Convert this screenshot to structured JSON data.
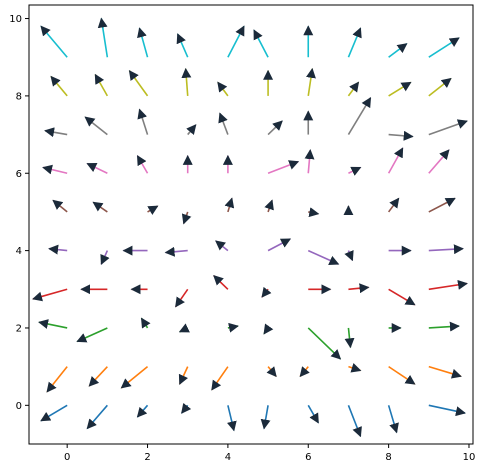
{
  "chart_data": {
    "type": "quiver",
    "title": "",
    "xlabel": "",
    "ylabel": "",
    "xlim": [
      -0.95,
      10.1
    ],
    "ylim": [
      -1.0,
      10.35
    ],
    "xticks": [
      0,
      2,
      4,
      6,
      8,
      10
    ],
    "yticks": [
      0,
      2,
      4,
      6,
      8,
      10
    ],
    "x_ticklabels": [
      "0",
      "2",
      "4",
      "6",
      "8",
      "10"
    ],
    "y_ticklabels": [
      "0",
      "2",
      "4",
      "6",
      "8",
      "10"
    ],
    "grid": false,
    "legend": false,
    "arrow_head_color": "#1b2a3a",
    "row_colors": [
      "#1f77b4",
      "#ff7f0e",
      "#2ca02c",
      "#d62728",
      "#9467bd",
      "#8c564b",
      "#e377c2",
      "#7f7f7f",
      "#bcbd22",
      "#17becf"
    ],
    "rows": [
      {
        "y": 0,
        "color": "#1f77b4",
        "vectors": [
          {
            "x": 0,
            "u": -0.65,
            "v": -0.4
          },
          {
            "x": 1,
            "u": -0.5,
            "v": -0.6
          },
          {
            "x": 2,
            "u": -0.25,
            "v": -0.3
          },
          {
            "x": 3,
            "u": -0.15,
            "v": -0.2
          },
          {
            "x": 4,
            "u": 0.15,
            "v": -0.65
          },
          {
            "x": 5,
            "u": -0.1,
            "v": -0.6
          },
          {
            "x": 6,
            "u": 0.25,
            "v": -0.45
          },
          {
            "x": 7,
            "u": 0.3,
            "v": -0.8
          },
          {
            "x": 8,
            "u": 0.2,
            "v": -0.7
          },
          {
            "x": 9,
            "u": 0.9,
            "v": -0.2
          }
        ]
      },
      {
        "y": 1,
        "color": "#ff7f0e",
        "vectors": [
          {
            "x": 0,
            "u": -0.5,
            "v": -0.65
          },
          {
            "x": 1,
            "u": -0.45,
            "v": -0.5
          },
          {
            "x": 2,
            "u": -0.65,
            "v": -0.55
          },
          {
            "x": 3,
            "u": -0.2,
            "v": -0.45
          },
          {
            "x": 4,
            "u": -0.4,
            "v": -0.6
          },
          {
            "x": 5,
            "u": 0.2,
            "v": -0.25
          },
          {
            "x": 6,
            "u": -0.2,
            "v": -0.25
          },
          {
            "x": 7,
            "u": 0.3,
            "v": -0.1
          },
          {
            "x": 8,
            "u": 0.65,
            "v": -0.45
          },
          {
            "x": 9,
            "u": 0.8,
            "v": -0.25
          }
        ]
      },
      {
        "y": 2,
        "color": "#2ca02c",
        "vectors": [
          {
            "x": 0,
            "u": -0.7,
            "v": 0.15
          },
          {
            "x": 1,
            "u": -0.75,
            "v": -0.35
          },
          {
            "x": 2,
            "u": -0.15,
            "v": 0.25
          },
          {
            "x": 3,
            "u": -0.2,
            "v": -0.1
          },
          {
            "x": 4,
            "u": 0.25,
            "v": 0.05
          },
          {
            "x": 5,
            "u": -0.1,
            "v": -0.15
          },
          {
            "x": 6,
            "u": 0.8,
            "v": -0.8
          },
          {
            "x": 7,
            "u": 0.05,
            "v": -0.5
          },
          {
            "x": 8,
            "u": 0.3,
            "v": 0.0
          },
          {
            "x": 9,
            "u": 0.75,
            "v": 0.05
          }
        ]
      },
      {
        "y": 3,
        "color": "#d62728",
        "vectors": [
          {
            "x": 0,
            "u": -0.85,
            "v": -0.25
          },
          {
            "x": 1,
            "u": -0.65,
            "v": 0.0
          },
          {
            "x": 2,
            "u": -0.4,
            "v": 0.0
          },
          {
            "x": 3,
            "u": -0.3,
            "v": -0.45
          },
          {
            "x": 4,
            "u": -0.35,
            "v": 0.35
          },
          {
            "x": 5,
            "u": -0.15,
            "v": -0.2
          },
          {
            "x": 6,
            "u": 0.55,
            "v": 0.0
          },
          {
            "x": 7,
            "u": 0.5,
            "v": 0.05
          },
          {
            "x": 8,
            "u": 0.65,
            "v": -0.4
          },
          {
            "x": 9,
            "u": 0.95,
            "v": 0.15
          }
        ]
      },
      {
        "y": 4,
        "color": "#9467bd",
        "vectors": [
          {
            "x": 0,
            "u": -0.45,
            "v": 0.05
          },
          {
            "x": 1,
            "u": -0.15,
            "v": -0.35
          },
          {
            "x": 2,
            "u": -0.6,
            "v": 0.0
          },
          {
            "x": 3,
            "u": -0.55,
            "v": -0.05
          },
          {
            "x": 4,
            "u": -0.3,
            "v": 0.25
          },
          {
            "x": 5,
            "u": 0.55,
            "v": 0.3
          },
          {
            "x": 6,
            "u": 0.75,
            "v": -0.35
          },
          {
            "x": 7,
            "u": 0.1,
            "v": -0.25
          },
          {
            "x": 8,
            "u": 0.55,
            "v": 0.0
          },
          {
            "x": 9,
            "u": 0.85,
            "v": 0.05
          }
        ]
      },
      {
        "y": 5,
        "color": "#8c564b",
        "vectors": [
          {
            "x": 0,
            "u": -0.35,
            "v": 0.3
          },
          {
            "x": 1,
            "u": -0.35,
            "v": 0.25
          },
          {
            "x": 2,
            "u": 0.25,
            "v": 0.15
          },
          {
            "x": 3,
            "u": -0.1,
            "v": -0.3
          },
          {
            "x": 4,
            "u": 0.1,
            "v": 0.35
          },
          {
            "x": 5,
            "u": 0.1,
            "v": 0.3
          },
          {
            "x": 6,
            "u": 0.25,
            "v": -0.05
          },
          {
            "x": 7,
            "u": 0.0,
            "v": 0.15
          },
          {
            "x": 8,
            "u": 0.25,
            "v": 0.35
          },
          {
            "x": 9,
            "u": 0.65,
            "v": 0.35
          }
        ]
      },
      {
        "y": 6,
        "color": "#e377c2",
        "vectors": [
          {
            "x": 0,
            "u": -0.6,
            "v": 0.15
          },
          {
            "x": 1,
            "u": -0.5,
            "v": 0.25
          },
          {
            "x": 2,
            "u": -0.25,
            "v": 0.45
          },
          {
            "x": 3,
            "u": 0.0,
            "v": 0.45
          },
          {
            "x": 4,
            "u": 0.0,
            "v": 0.45
          },
          {
            "x": 5,
            "u": 0.75,
            "v": 0.3
          },
          {
            "x": 6,
            "u": 0.05,
            "v": 0.6
          },
          {
            "x": 7,
            "u": 0.3,
            "v": 0.15
          },
          {
            "x": 8,
            "u": 0.35,
            "v": 0.65
          },
          {
            "x": 9,
            "u": 0.5,
            "v": 0.6
          }
        ]
      },
      {
        "y": 7,
        "color": "#7f7f7f",
        "vectors": [
          {
            "x": 0,
            "u": -0.55,
            "v": 0.1
          },
          {
            "x": 1,
            "u": -0.55,
            "v": 0.45
          },
          {
            "x": 2,
            "u": -0.2,
            "v": 0.65
          },
          {
            "x": 3,
            "u": 0.2,
            "v": 0.25
          },
          {
            "x": 4,
            "u": -0.2,
            "v": 0.55
          },
          {
            "x": 5,
            "u": 0.35,
            "v": 0.35
          },
          {
            "x": 6,
            "u": 0.0,
            "v": 0.6
          },
          {
            "x": 7,
            "u": 0.55,
            "v": 0.95
          },
          {
            "x": 8,
            "u": 0.6,
            "v": -0.05
          },
          {
            "x": 9,
            "u": 0.95,
            "v": 0.35
          }
        ]
      },
      {
        "y": 8,
        "color": "#bcbd22",
        "vectors": [
          {
            "x": 0,
            "u": -0.4,
            "v": 0.5
          },
          {
            "x": 1,
            "u": -0.3,
            "v": 0.55
          },
          {
            "x": 2,
            "u": -0.45,
            "v": 0.65
          },
          {
            "x": 3,
            "u": -0.05,
            "v": 0.7
          },
          {
            "x": 4,
            "u": -0.25,
            "v": 0.35
          },
          {
            "x": 5,
            "u": 0.0,
            "v": 0.65
          },
          {
            "x": 6,
            "u": 0.1,
            "v": 0.7
          },
          {
            "x": 7,
            "u": 0.25,
            "v": 0.35
          },
          {
            "x": 8,
            "u": 0.55,
            "v": 0.35
          },
          {
            "x": 9,
            "u": 0.55,
            "v": 0.45
          }
        ]
      },
      {
        "y": 9,
        "color": "#17becf",
        "vectors": [
          {
            "x": 0,
            "u": -0.65,
            "v": 0.8
          },
          {
            "x": 1,
            "u": -0.15,
            "v": 1.0
          },
          {
            "x": 2,
            "u": -0.2,
            "v": 0.75
          },
          {
            "x": 3,
            "u": -0.25,
            "v": 0.6
          },
          {
            "x": 4,
            "u": 0.4,
            "v": 0.8
          },
          {
            "x": 5,
            "u": -0.35,
            "v": 0.7
          },
          {
            "x": 6,
            "u": 0.0,
            "v": 0.8
          },
          {
            "x": 7,
            "u": 0.3,
            "v": 0.75
          },
          {
            "x": 8,
            "u": 0.45,
            "v": 0.35
          },
          {
            "x": 9,
            "u": 0.75,
            "v": 0.5
          }
        ]
      }
    ]
  }
}
